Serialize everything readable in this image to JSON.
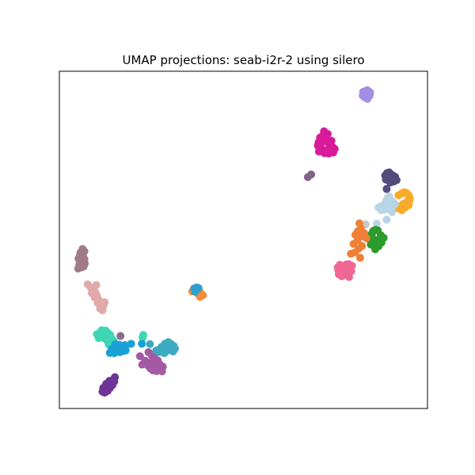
{
  "chart_data": {
    "type": "scatter",
    "title": "UMAP projections: seab-i2r-2 using silero",
    "xlabel": "",
    "ylabel": "",
    "xlim": [
      0,
      100
    ],
    "ylim": [
      0,
      100
    ],
    "axis_ticks": false,
    "grid": false,
    "legend": "none",
    "clusters": [
      {
        "color": "#a28fe4",
        "points": [
          [
            82.5,
            93.9
          ],
          [
            83.1,
            94.1
          ],
          [
            83.6,
            94.4
          ],
          [
            84.0,
            94.1
          ],
          [
            84.4,
            93.7
          ],
          [
            84.0,
            93.0
          ],
          [
            83.5,
            92.6
          ],
          [
            82.9,
            92.3
          ],
          [
            82.4,
            92.8
          ],
          [
            83.2,
            93.3
          ],
          [
            84.3,
            92.8
          ],
          [
            83.7,
            91.8
          ]
        ]
      },
      {
        "color": "#d81a9b",
        "points": [
          [
            70.2,
            77.9
          ],
          [
            71.0,
            78.5
          ],
          [
            71.5,
            79.3
          ],
          [
            70.8,
            80.3
          ],
          [
            71.6,
            81.0
          ],
          [
            72.3,
            80.2
          ],
          [
            72.8,
            79.0
          ],
          [
            73.4,
            78.2
          ],
          [
            74.1,
            77.7
          ],
          [
            74.8,
            77.0
          ],
          [
            73.6,
            76.8
          ],
          [
            72.4,
            76.5
          ],
          [
            71.3,
            77.0
          ],
          [
            70.5,
            76.2
          ],
          [
            72.0,
            75.7
          ],
          [
            73.2,
            75.6
          ],
          [
            74.4,
            75.9
          ],
          [
            71.9,
            82.2
          ],
          [
            70.4,
            78.9
          ],
          [
            73.9,
            79.4
          ],
          [
            71.5,
            76.3
          ],
          [
            72.9,
            81.4
          ]
        ]
      },
      {
        "color": "#85628a",
        "points": [
          [
            67.5,
            68.6
          ],
          [
            68.4,
            69.4
          ]
        ]
      },
      {
        "color": "#524b7b",
        "points": [
          [
            88.5,
            69.1
          ],
          [
            89.0,
            69.8
          ],
          [
            89.6,
            70.0
          ],
          [
            90.0,
            69.5
          ],
          [
            90.6,
            69.1
          ],
          [
            91.2,
            68.7
          ],
          [
            91.6,
            67.7
          ],
          [
            90.8,
            67.3
          ],
          [
            89.9,
            67.0
          ],
          [
            89.2,
            67.7
          ],
          [
            88.7,
            67.9
          ],
          [
            88.9,
            65.1
          ]
        ]
      },
      {
        "color": "#f8aa29",
        "points": [
          [
            92.1,
            63.2
          ],
          [
            93.0,
            63.8
          ],
          [
            93.6,
            64.1
          ],
          [
            94.3,
            63.9
          ],
          [
            94.9,
            63.2
          ],
          [
            95.2,
            62.4
          ],
          [
            94.7,
            61.6
          ],
          [
            94.1,
            61.0
          ],
          [
            93.4,
            60.6
          ],
          [
            92.6,
            60.0
          ],
          [
            92.2,
            59.3
          ],
          [
            93.0,
            58.8
          ],
          [
            93.9,
            59.6
          ],
          [
            94.9,
            60.3
          ],
          [
            95.1,
            61.7
          ]
        ]
      },
      {
        "color": "#b8d5e6",
        "points": [
          [
            86.7,
            59.6
          ],
          [
            87.5,
            60.0
          ],
          [
            88.3,
            60.6
          ],
          [
            88.8,
            61.6
          ],
          [
            89.2,
            62.5
          ],
          [
            89.9,
            61.9
          ],
          [
            90.6,
            61.3
          ],
          [
            91.1,
            60.6
          ],
          [
            90.5,
            59.9
          ],
          [
            89.7,
            59.5
          ],
          [
            88.9,
            59.1
          ],
          [
            88.1,
            58.9
          ],
          [
            87.4,
            58.8
          ],
          [
            88.9,
            56.0
          ],
          [
            86.2,
            54.8
          ],
          [
            89.6,
            62.9
          ],
          [
            90.4,
            58.2
          ],
          [
            87.8,
            60.2
          ]
        ]
      },
      {
        "color": "#c7c7c7",
        "points": [
          [
            83.2,
            54.6
          ]
        ]
      },
      {
        "color": "#2b9b2b",
        "points": [
          [
            84.3,
            51.3
          ],
          [
            85.1,
            52.3
          ],
          [
            85.9,
            53.0
          ],
          [
            86.5,
            52.8
          ],
          [
            87.3,
            51.4
          ],
          [
            87.0,
            50.4
          ],
          [
            86.0,
            49.7
          ],
          [
            85.2,
            49.2
          ],
          [
            84.6,
            48.6
          ],
          [
            85.8,
            47.2
          ],
          [
            86.7,
            48.1
          ],
          [
            87.5,
            49.2
          ],
          [
            85.3,
            52.7
          ],
          [
            86.4,
            48.7
          ],
          [
            84.1,
            50.2
          ],
          [
            88.1,
            50.6
          ],
          [
            84.9,
            51.0
          ]
        ]
      },
      {
        "color": "#f07f37",
        "points": [
          [
            80.4,
            51.5
          ],
          [
            81.1,
            52.6
          ],
          [
            81.9,
            53.3
          ],
          [
            81.5,
            54.9
          ],
          [
            82.8,
            52.0
          ],
          [
            82.3,
            51.1
          ],
          [
            81.0,
            49.9
          ],
          [
            79.9,
            48.8
          ],
          [
            81.3,
            47.4
          ],
          [
            82.2,
            48.2
          ],
          [
            80.3,
            46.3
          ],
          [
            81.7,
            44.7
          ],
          [
            79.2,
            45.9
          ],
          [
            83.4,
            50.5
          ],
          [
            80.9,
            52.2
          ]
        ]
      },
      {
        "color": "#f06793",
        "points": [
          [
            75.8,
            41.0
          ],
          [
            76.5,
            41.6
          ],
          [
            77.2,
            42.1
          ],
          [
            77.9,
            42.7
          ],
          [
            78.6,
            42.8
          ],
          [
            79.5,
            42.3
          ],
          [
            78.9,
            41.4
          ],
          [
            79.3,
            40.7
          ],
          [
            78.3,
            40.2
          ],
          [
            77.5,
            39.6
          ],
          [
            76.7,
            39.2
          ],
          [
            75.9,
            39.8
          ],
          [
            76.2,
            42.6
          ],
          [
            77.8,
            40.9
          ],
          [
            78.7,
            39.0
          ],
          [
            75.6,
            41.8
          ]
        ]
      },
      {
        "color": "#a07b86",
        "points": [
          [
            5.2,
            44.4
          ],
          [
            5.7,
            43.9
          ],
          [
            5.4,
            42.6
          ],
          [
            5.9,
            41.8
          ],
          [
            6.6,
            42.1
          ],
          [
            6.9,
            43.0
          ],
          [
            6.8,
            44.3
          ],
          [
            6.4,
            45.4
          ],
          [
            6.8,
            46.6
          ],
          [
            6.3,
            47.3
          ],
          [
            5.7,
            46.2
          ],
          [
            5.5,
            45.1
          ],
          [
            6.1,
            42.3
          ],
          [
            5.1,
            41.5
          ],
          [
            6.5,
            44.7
          ]
        ]
      },
      {
        "color": "#e1a9a9",
        "points": [
          [
            7.7,
            36.8
          ],
          [
            8.5,
            35.9
          ],
          [
            9.3,
            35.6
          ],
          [
            9.8,
            34.4
          ],
          [
            10.2,
            33.3
          ],
          [
            10.7,
            32.2
          ],
          [
            11.3,
            31.2
          ],
          [
            12.0,
            30.5
          ],
          [
            11.1,
            29.6
          ],
          [
            10.4,
            31.3
          ],
          [
            9.6,
            32.9
          ],
          [
            8.8,
            34.2
          ],
          [
            11.7,
            29.1
          ],
          [
            12.3,
            31.5
          ],
          [
            10.0,
            36.6
          ]
        ]
      },
      {
        "color": "#3fd6b4",
        "points": [
          [
            10.2,
            22.0
          ],
          [
            11.0,
            22.6
          ],
          [
            11.7,
            21.7
          ],
          [
            12.2,
            20.8
          ],
          [
            12.9,
            20.2
          ],
          [
            13.5,
            19.5
          ],
          [
            14.1,
            20.9
          ],
          [
            14.8,
            20.0
          ],
          [
            13.2,
            22.4
          ],
          [
            11.5,
            23.2
          ],
          [
            12.6,
            23.1
          ],
          [
            10.7,
            20.9
          ],
          [
            13.8,
            21.8
          ],
          [
            12.1,
            22.1
          ],
          [
            13.4,
            19.0
          ],
          [
            22.8,
            21.8
          ],
          [
            22.6,
            21.0
          ]
        ]
      },
      {
        "color": "#1aa1d5",
        "points": [
          [
            14.2,
            17.6
          ],
          [
            15.0,
            18.3
          ],
          [
            15.7,
            17.3
          ],
          [
            16.4,
            17.4
          ],
          [
            17.1,
            18.1
          ],
          [
            17.8,
            18.8
          ],
          [
            17.3,
            17.1
          ],
          [
            16.5,
            16.7
          ],
          [
            15.7,
            17.9
          ],
          [
            14.9,
            16.4
          ],
          [
            18.0,
            17.2
          ],
          [
            19.5,
            19.2
          ],
          [
            22.4,
            19.2
          ],
          [
            13.7,
            16.5
          ],
          [
            16.3,
            18.9
          ],
          [
            17.9,
            18.0
          ],
          [
            15.2,
            19.1
          ]
        ]
      },
      {
        "color": "#a45aa2",
        "points": [
          [
            24.2,
            16.7
          ],
          [
            25.1,
            15.7
          ],
          [
            25.7,
            14.7
          ],
          [
            26.7,
            14.3
          ],
          [
            27.2,
            13.2
          ],
          [
            28.1,
            12.4
          ],
          [
            27.2,
            11.6
          ],
          [
            26.4,
            11.1
          ],
          [
            25.4,
            11.3
          ],
          [
            24.7,
            11.9
          ],
          [
            24.0,
            12.8
          ],
          [
            23.3,
            14.2
          ],
          [
            22.5,
            13.0
          ],
          [
            21.9,
            15.5
          ],
          [
            26.0,
            12.5
          ],
          [
            27.9,
            11.0
          ],
          [
            24.8,
            13.6
          ],
          [
            25.8,
            16.1
          ]
        ]
      },
      {
        "color": "#8e6b8e",
        "points": [
          [
            16.6,
            21.5
          ]
        ]
      },
      {
        "color": "#3caabf",
        "points": [
          [
            27.2,
            16.8
          ],
          [
            28.0,
            17.4
          ],
          [
            28.7,
            18.0
          ],
          [
            29.4,
            18.6
          ],
          [
            30.1,
            18.2
          ],
          [
            30.7,
            17.6
          ],
          [
            31.1,
            18.5
          ],
          [
            30.4,
            19.1
          ],
          [
            29.6,
            19.7
          ],
          [
            28.7,
            19.2
          ],
          [
            27.8,
            18.3
          ],
          [
            27.1,
            17.5
          ],
          [
            30.9,
            16.9
          ],
          [
            28.5,
            16.4
          ],
          [
            31.4,
            17.8
          ],
          [
            29.2,
            17.1
          ],
          [
            24.6,
            19.1
          ],
          [
            26.3,
            17.2
          ]
        ]
      },
      {
        "color": "#6e3596",
        "points": [
          [
            11.7,
            5.0
          ],
          [
            12.3,
            5.6
          ],
          [
            12.8,
            6.5
          ],
          [
            13.4,
            7.0
          ],
          [
            14.0,
            7.5
          ],
          [
            14.4,
            8.4
          ],
          [
            15.1,
            9.3
          ],
          [
            14.4,
            6.9
          ],
          [
            13.7,
            6.0
          ],
          [
            13.1,
            5.2
          ],
          [
            12.3,
            4.7
          ],
          [
            11.9,
            6.1
          ],
          [
            14.9,
            8.0
          ],
          [
            13.6,
            8.2
          ],
          [
            12.7,
            7.3
          ]
        ]
      },
      {
        "color": "#f28b3a",
        "points": [
          [
            36.1,
            34.7
          ],
          [
            37.0,
            35.2
          ],
          [
            38.1,
            34.7
          ],
          [
            39.0,
            33.6
          ],
          [
            38.2,
            33.1
          ],
          [
            37.5,
            34.2
          ]
        ]
      },
      {
        "color": "#2f9fd0",
        "points": [
          [
            36.6,
            35.6
          ],
          [
            37.3,
            35.9
          ],
          [
            37.8,
            35.7
          ],
          [
            36.9,
            34.6
          ]
        ]
      }
    ]
  }
}
